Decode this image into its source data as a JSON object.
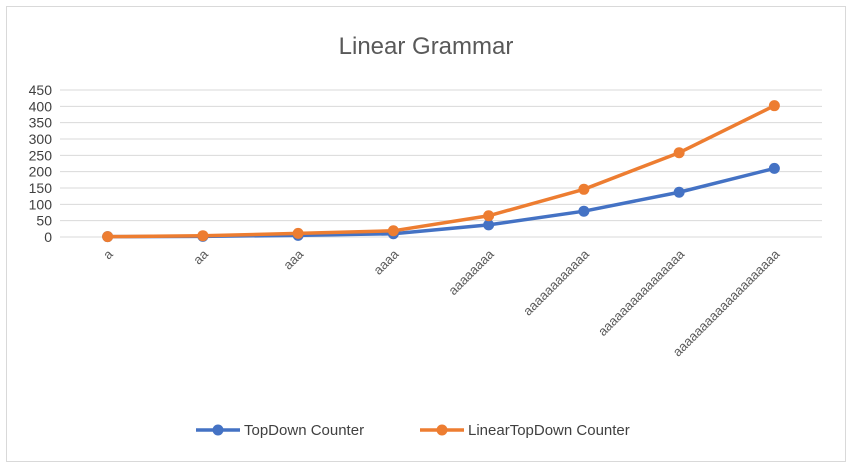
{
  "chart_data": {
    "type": "line",
    "title": "Linear Grammar",
    "xlabel": "",
    "ylabel": "",
    "ylim": [
      0,
      450
    ],
    "y_ticks": [
      0,
      50,
      100,
      150,
      200,
      250,
      300,
      350,
      400,
      450
    ],
    "grid": true,
    "legend_position": "bottom",
    "categories": [
      "a",
      "aa",
      "aaa",
      "aaaa",
      "aaaaaaaa",
      "aaaaaaaaaaaa",
      "aaaaaaaaaaaaaaaa",
      "aaaaaaaaaaaaaaaaaaaa"
    ],
    "series": [
      {
        "name": "TopDown Counter",
        "color": "#4472C4",
        "values": [
          1,
          2,
          5,
          10,
          37,
          79,
          137,
          210
        ]
      },
      {
        "name": "LinearTopDown Counter",
        "color": "#ED7D31",
        "values": [
          1,
          4,
          11,
          19,
          65,
          146,
          258,
          402
        ]
      }
    ]
  }
}
